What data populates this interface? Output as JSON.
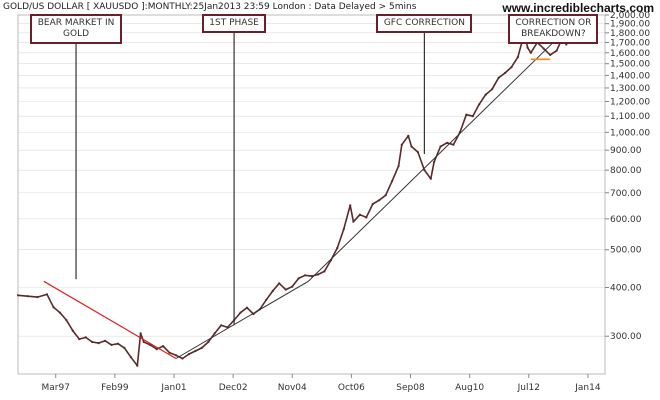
{
  "header": {
    "title": "GOLD/US DOLLAR [ XAUUSDO ]:MONTHLY:25Jan2013 23:59 London : Data Delayed > 5mins",
    "site": "www.incrediblecharts.com"
  },
  "annotations": [
    {
      "id": "bear",
      "text": "BEAR MARKET IN\nGOLD"
    },
    {
      "id": "phase1",
      "text": "1ST PHASE"
    },
    {
      "id": "gfc",
      "text": "GFC CORRECTION"
    },
    {
      "id": "breakdown",
      "text": "CORRECTION OR\nBREAKDOWN?"
    }
  ],
  "colors": {
    "price": "#5a2a2a",
    "trendline": "#333333",
    "bear_line": "#e02020",
    "resistance": "#f08c1e",
    "box_border": "#6b1f2a",
    "grid": "#dddddd"
  },
  "chart_data": {
    "type": "line",
    "title": "GOLD/US DOLLAR [ XAUUSDO ]:MONTHLY:25Jan2013 23:59 London : Data Delayed > 5mins",
    "xlabel": "",
    "ylabel": "",
    "y_scale": "log",
    "ylim": [
      240,
      2000
    ],
    "xlim": [
      1996.0,
      2014.2
    ],
    "x_tick_labels": [
      "Mar97",
      "Feb99",
      "Jan01",
      "Dec02",
      "Nov04",
      "Oct06",
      "Sep08",
      "Aug10",
      "Jul12",
      "Jan14"
    ],
    "y_tick_labels": [
      "300.00",
      "400.00",
      "500.00",
      "600.00",
      "700.00",
      "800.00",
      "900.00",
      "1,000.00",
      "1,100.00",
      "1,200.00",
      "1,300.00",
      "1,400.00",
      "1,500.00",
      "1,600.00",
      "1,700.00",
      "1,800.00",
      "1,900.00",
      "2,000.00"
    ],
    "grid": true,
    "series": [
      {
        "x": [
          1996.0,
          1996.3,
          1996.6,
          1996.9,
          1997.1,
          1997.3,
          1997.5,
          1997.7,
          1997.9,
          1998.1,
          1998.3,
          1998.5,
          1998.7,
          1998.9,
          1999.1,
          1999.3,
          1999.5,
          1999.7,
          1999.8,
          1999.9,
          2000.1,
          2000.3,
          2000.5,
          2000.7,
          2000.9,
          2001.1,
          2001.3,
          2001.5,
          2001.7,
          2001.9,
          2002.1,
          2002.3,
          2002.5,
          2002.7,
          2002.9,
          2003.1,
          2003.3,
          2003.5,
          2003.7,
          2003.9,
          2004.1,
          2004.3,
          2004.5,
          2004.7,
          2004.9,
          2005.1,
          2005.3,
          2005.5,
          2005.7,
          2005.9,
          2006.1,
          2006.3,
          2006.4,
          2006.6,
          2006.8,
          2007.0,
          2007.2,
          2007.4,
          2007.6,
          2007.8,
          2007.9,
          2008.1,
          2008.2,
          2008.4,
          2008.6,
          2008.8,
          2008.9,
          2009.1,
          2009.3,
          2009.5,
          2009.7,
          2009.9,
          2010.1,
          2010.3,
          2010.5,
          2010.7,
          2010.9,
          2011.1,
          2011.3,
          2011.5,
          2011.7,
          2011.8,
          2011.9,
          2012.1,
          2012.3,
          2012.5,
          2012.7,
          2012.9,
          2013.0
        ],
        "y": [
          382,
          380,
          378,
          384,
          356,
          345,
          330,
          310,
          295,
          298,
          290,
          288,
          292,
          285,
          287,
          280,
          265,
          252,
          305,
          290,
          285,
          278,
          283,
          272,
          268,
          263,
          270,
          275,
          280,
          290,
          305,
          320,
          316,
          330,
          345,
          355,
          342,
          352,
          372,
          392,
          410,
          395,
          402,
          422,
          430,
          428,
          432,
          440,
          470,
          505,
          565,
          650,
          590,
          615,
          605,
          655,
          670,
          690,
          750,
          820,
          930,
          980,
          920,
          890,
          800,
          760,
          840,
          920,
          940,
          930,
          1000,
          1110,
          1100,
          1180,
          1250,
          1290,
          1380,
          1420,
          1470,
          1560,
          1800,
          1650,
          1600,
          1700,
          1640,
          1580,
          1620,
          1760,
          1680
        ]
      }
    ],
    "annotation_lines": [
      {
        "label": "bear_trendline",
        "x": [
          1996.8,
          2000.9
        ],
        "y": [
          415,
          263
        ]
      },
      {
        "label": "long_trendline",
        "x": [
          2000.9,
          2005.0,
          2012.9
        ],
        "y": [
          263,
          415,
          1800
        ]
      },
      {
        "label": "resistance",
        "x": [
          2011.7,
          2013.9
        ],
        "y": [
          1820,
          1820
        ]
      },
      {
        "label": "triangle_base",
        "x": [
          2011.9,
          2012.5
        ],
        "y": [
          1540,
          1540
        ]
      }
    ],
    "annotations": [
      {
        "text": "BEAR MARKET IN GOLD",
        "x": 1997.8,
        "y": 420
      },
      {
        "text": "1ST PHASE",
        "x": 2002.7,
        "y": 320
      },
      {
        "text": "GFC CORRECTION",
        "x": 2008.6,
        "y": 880
      },
      {
        "text": "CORRECTION OR BREAKDOWN?",
        "x": 2012.6,
        "y": 1700
      }
    ]
  }
}
